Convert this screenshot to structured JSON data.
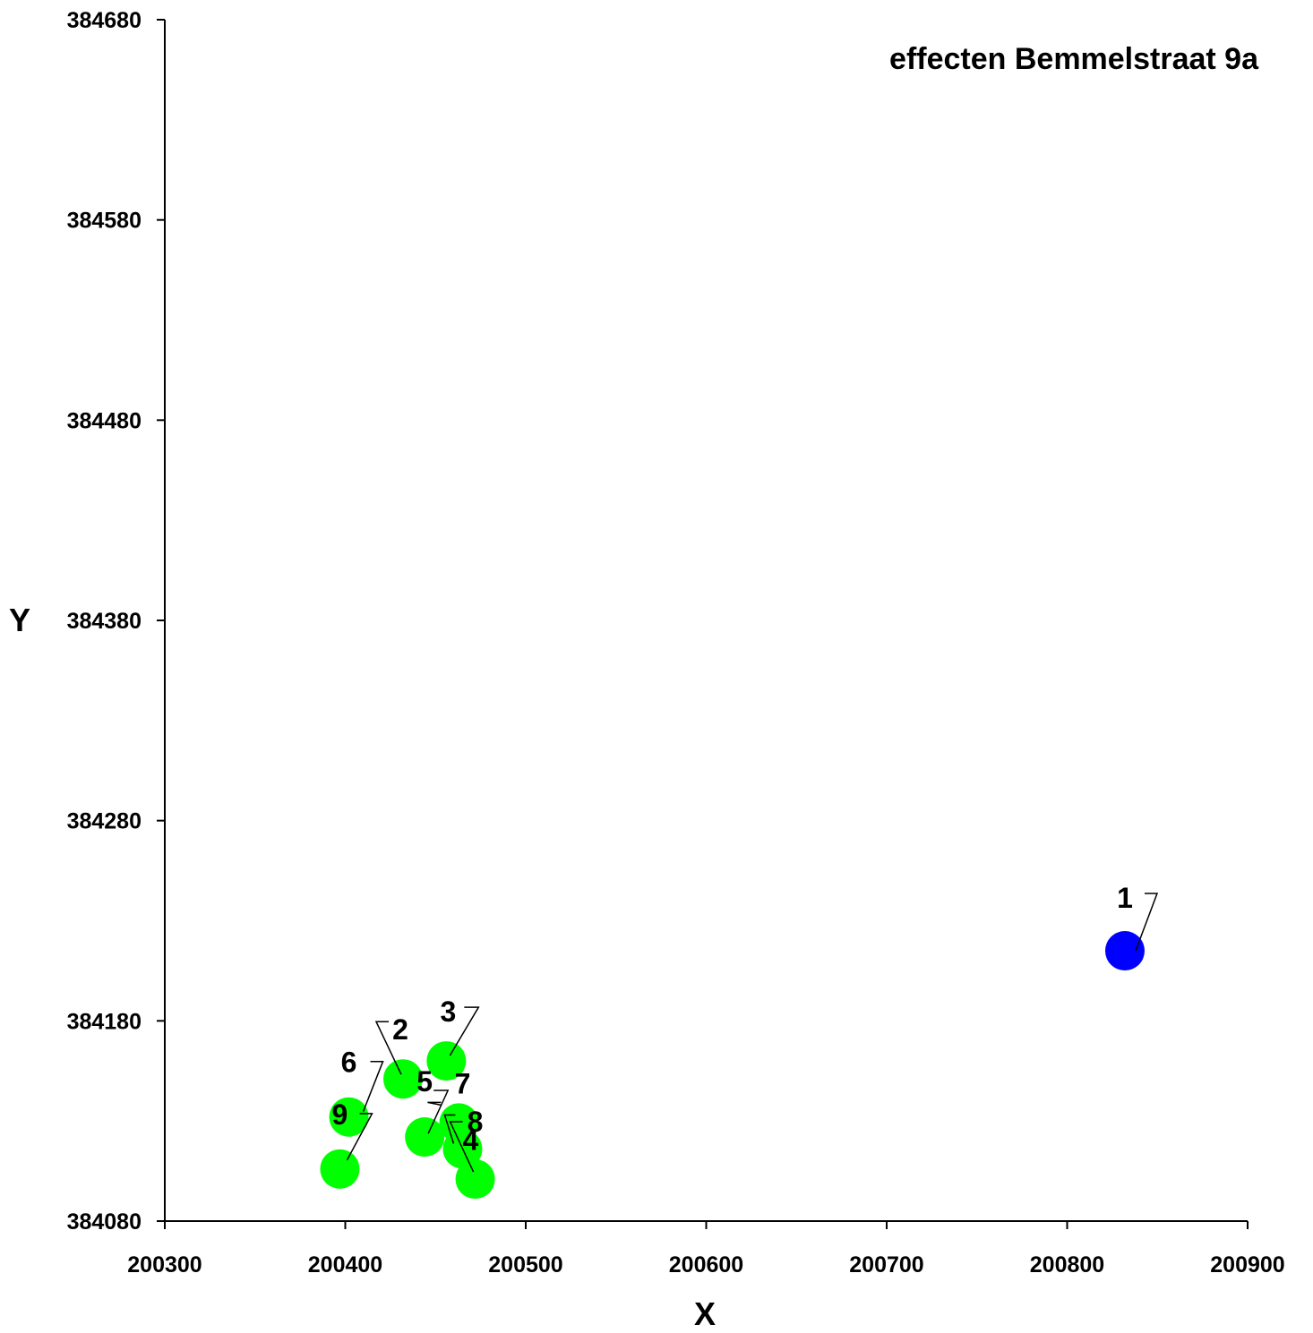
{
  "chart_data": {
    "type": "scatter",
    "title": "effecten Bemmelstraat 9a",
    "xlabel": "X",
    "ylabel": "Y",
    "xlim": [
      200300,
      200900
    ],
    "ylim": [
      384080,
      384680
    ],
    "xticks": [
      "200300",
      "200400",
      "200500",
      "200600",
      "200700",
      "200800",
      "200900"
    ],
    "yticks": [
      "384680",
      "384580",
      "384480",
      "384380",
      "384280",
      "384180",
      "384080"
    ],
    "grid": false,
    "colors": {
      "primary": "#0000ff",
      "secondary": "#00ff00"
    },
    "points": [
      {
        "label": "1",
        "x": 200832,
        "y": 384215,
        "color": "#0000ff"
      },
      {
        "label": "2",
        "x": 200432,
        "y": 384151,
        "color": "#00ff00"
      },
      {
        "label": "3",
        "x": 200456,
        "y": 384160,
        "color": "#00ff00"
      },
      {
        "label": "4",
        "x": 200463,
        "y": 384129,
        "color": "#00ff00"
      },
      {
        "label": "5",
        "x": 200444,
        "y": 384122,
        "color": "#00ff00"
      },
      {
        "label": "6",
        "x": 200402,
        "y": 384132,
        "color": "#00ff00"
      },
      {
        "label": "7",
        "x": 200465,
        "y": 384116,
        "color": "#00ff00"
      },
      {
        "label": "8",
        "x": 200472,
        "y": 384101,
        "color": "#00ff00"
      },
      {
        "label": "9",
        "x": 200397,
        "y": 384106,
        "color": "#00ff00"
      }
    ]
  }
}
